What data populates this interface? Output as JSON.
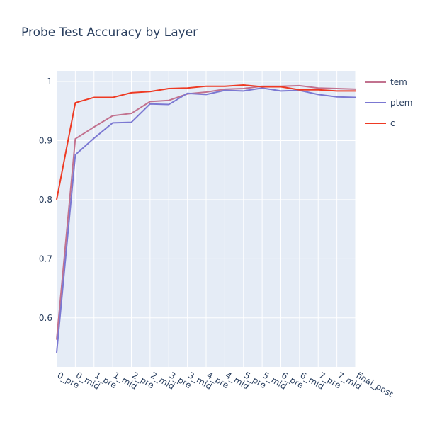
{
  "chart_data": {
    "type": "line",
    "title": "Probe Test Accuracy by Layer",
    "xlabel": "",
    "ylabel": "",
    "categories": [
      "0_pre",
      "0_mid",
      "1_pre",
      "1_mid",
      "2_pre",
      "2_mid",
      "3_pre",
      "3_mid",
      "4_pre",
      "4_mid",
      "5_pre",
      "5_mid",
      "6_pre",
      "6_mid",
      "7_pre",
      "7_mid",
      "final_post"
    ],
    "y_ticks": [
      0.6,
      0.7,
      0.8,
      0.9,
      1
    ],
    "y_tick_labels": [
      "0.6",
      "0.7",
      "0.8",
      "0.9",
      "1"
    ],
    "ylim": [
      0.517,
      1.018
    ],
    "grid": true,
    "legend_position": "top-right",
    "series": [
      {
        "name": "tem",
        "color": "#c2728f",
        "values": [
          0.563,
          0.903,
          0.923,
          0.942,
          0.946,
          0.966,
          0.968,
          0.979,
          0.982,
          0.987,
          0.988,
          0.992,
          0.992,
          0.993,
          0.989,
          0.988,
          0.987
        ]
      },
      {
        "name": "ptem",
        "color": "#7b78d2",
        "values": [
          0.541,
          0.876,
          0.904,
          0.93,
          0.931,
          0.962,
          0.961,
          0.98,
          0.978,
          0.985,
          0.984,
          0.989,
          0.984,
          0.985,
          0.978,
          0.974,
          0.973
        ]
      },
      {
        "name": "c",
        "color": "#ee3a23",
        "values": [
          0.8,
          0.964,
          0.973,
          0.973,
          0.981,
          0.983,
          0.988,
          0.989,
          0.992,
          0.992,
          0.994,
          0.991,
          0.991,
          0.986,
          0.986,
          0.984,
          0.984
        ]
      }
    ]
  }
}
